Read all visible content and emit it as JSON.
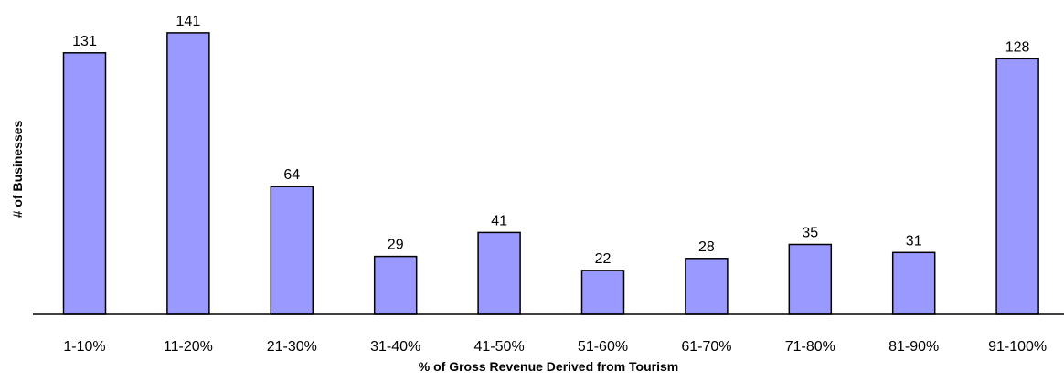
{
  "chart_data": {
    "type": "bar",
    "title": "",
    "xlabel": "% of Gross Revenue Derived from Tourism",
    "ylabel": "# of Businesses",
    "categories": [
      "1-10%",
      "11-20%",
      "21-30%",
      "31-40%",
      "41-50%",
      "51-60%",
      "61-70%",
      "71-80%",
      "81-90%",
      "91-100%"
    ],
    "values": [
      131,
      141,
      64,
      29,
      41,
      22,
      28,
      35,
      31,
      128
    ],
    "ylim": [
      0,
      150
    ],
    "grid": false,
    "legend": "none",
    "data_labels": true,
    "colors": {
      "bar_fill": "#9999ff",
      "bar_stroke": "#000000",
      "axis": "#000000"
    }
  }
}
